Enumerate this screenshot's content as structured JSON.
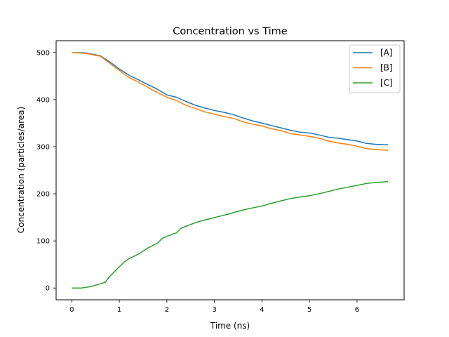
{
  "chart_data": {
    "type": "line",
    "title": "Concentration vs Time",
    "xlabel": "Time (ns)",
    "ylabel": "Concentration (particles/area)",
    "xlim": [
      -0.33,
      6.99
    ],
    "ylim": [
      -25,
      525
    ],
    "xticks": [
      0,
      1,
      2,
      3,
      4,
      5,
      6
    ],
    "yticks": [
      0,
      100,
      200,
      300,
      400,
      500
    ],
    "grid": false,
    "legend_position": "top-right",
    "series": [
      {
        "name": "[A]",
        "color": "#1f77b4",
        "x": [
          0,
          0.3,
          0.6,
          0.8,
          1.0,
          1.2,
          1.4,
          1.6,
          1.8,
          2.0,
          2.2,
          2.4,
          2.6,
          2.8,
          3.0,
          3.2,
          3.4,
          3.6,
          3.8,
          4.0,
          4.2,
          4.4,
          4.6,
          4.8,
          5.0,
          5.2,
          5.4,
          5.6,
          5.8,
          6.0,
          6.2,
          6.4,
          6.65
        ],
        "values": [
          500,
          499,
          493,
          480,
          465,
          452,
          442,
          432,
          422,
          410,
          405,
          396,
          388,
          382,
          377,
          373,
          368,
          361,
          355,
          350,
          345,
          340,
          335,
          331,
          329,
          325,
          320,
          318,
          315,
          312,
          307,
          305,
          304
        ]
      },
      {
        "name": "[B]",
        "color": "#ff7f0e",
        "x": [
          0,
          0.3,
          0.6,
          0.8,
          1.0,
          1.2,
          1.4,
          1.6,
          1.8,
          2.0,
          2.2,
          2.4,
          2.6,
          2.8,
          3.0,
          3.2,
          3.4,
          3.6,
          3.8,
          4.0,
          4.2,
          4.4,
          4.6,
          4.8,
          5.0,
          5.2,
          5.4,
          5.6,
          5.8,
          6.0,
          6.2,
          6.4,
          6.65
        ],
        "values": [
          500,
          498,
          492,
          477,
          462,
          447,
          437,
          426,
          415,
          405,
          398,
          388,
          381,
          374,
          369,
          364,
          360,
          353,
          348,
          344,
          338,
          334,
          328,
          325,
          322,
          318,
          312,
          308,
          305,
          301,
          296,
          294,
          292
        ]
      },
      {
        "name": "[C]",
        "color": "#2ca02c",
        "x": [
          0,
          0.2,
          0.4,
          0.6,
          0.7,
          0.8,
          0.9,
          1.0,
          1.1,
          1.2,
          1.4,
          1.6,
          1.8,
          1.9,
          2.0,
          2.2,
          2.3,
          2.5,
          2.7,
          2.9,
          3.1,
          3.3,
          3.5,
          3.7,
          3.9,
          4.0,
          4.2,
          4.4,
          4.6,
          4.8,
          5.0,
          5.2,
          5.4,
          5.6,
          5.8,
          6.0,
          6.2,
          6.4,
          6.65
        ],
        "values": [
          0,
          0,
          3,
          9,
          12,
          25,
          35,
          45,
          55,
          62,
          72,
          85,
          95,
          105,
          110,
          117,
          127,
          135,
          142,
          147,
          152,
          157,
          163,
          168,
          172,
          174,
          180,
          185,
          190,
          193,
          196,
          200,
          205,
          210,
          214,
          218,
          222,
          224,
          226
        ]
      }
    ]
  }
}
